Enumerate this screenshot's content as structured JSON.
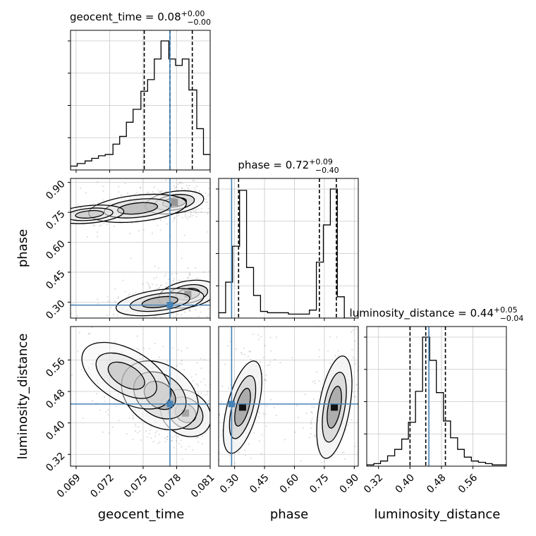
{
  "chart_data": {
    "type": "corner",
    "parameters": [
      "geocent_time",
      "phase",
      "luminosity_distance"
    ],
    "truths": {
      "geocent_time": 0.0774,
      "phase": 0.285,
      "luminosity_distance": 0.448
    },
    "titles": {
      "geocent_time": {
        "label": "geocent_time = 0.08",
        "plus": "+0.00",
        "minus": "−0.00"
      },
      "phase": {
        "label": "phase = 0.72",
        "plus": "+0.09",
        "minus": "−0.40"
      },
      "luminosity_distance": {
        "label": "luminosity_distance = 0.44",
        "plus": "+0.05",
        "minus": "−0.04"
      }
    },
    "ranges": {
      "geocent_time": [
        0.0685,
        0.081
      ],
      "phase": [
        0.22,
        0.92
      ],
      "luminosity_distance": [
        0.29,
        0.645
      ]
    },
    "ticks": {
      "geocent_time": [
        0.069,
        0.072,
        0.075,
        0.078,
        0.081
      ],
      "phase": [
        0.3,
        0.45,
        0.6,
        0.75,
        0.9
      ],
      "luminosity_distance": [
        0.32,
        0.4,
        0.48,
        0.56
      ]
    },
    "tick_labels": {
      "geocent_time": [
        "0.069",
        "0.072",
        "0.075",
        "0.078",
        "0.081"
      ],
      "phase": [
        "0.30",
        "0.45",
        "0.60",
        "0.75",
        "0.90"
      ],
      "luminosity_distance": [
        "0.32",
        "0.40",
        "0.48",
        "0.56"
      ]
    },
    "quantiles": {
      "geocent_time": [
        0.0751,
        0.0774,
        0.0794
      ],
      "phase": [
        0.32,
        0.725,
        0.81
      ],
      "luminosity_distance": [
        0.4,
        0.44,
        0.49
      ]
    },
    "histograms": {
      "geocent_time": {
        "edges": [
          0.0685,
          0.0691,
          0.0698,
          0.0704,
          0.071,
          0.0716,
          0.0723,
          0.0729,
          0.0735,
          0.0741,
          0.0748,
          0.0754,
          0.076,
          0.0766,
          0.0773,
          0.0779,
          0.0785,
          0.0791,
          0.0798,
          0.0804,
          0.081
        ],
        "counts": [
          3,
          5,
          7,
          9,
          11,
          12,
          20,
          26,
          37,
          47,
          61,
          70,
          86,
          100,
          86,
          81,
          86,
          62,
          32,
          12
        ]
      },
      "phase": {
        "edges": [
          0.22,
          0.255,
          0.29,
          0.325,
          0.36,
          0.395,
          0.43,
          0.465,
          0.5,
          0.535,
          0.57,
          0.605,
          0.64,
          0.675,
          0.71,
          0.745,
          0.78,
          0.815,
          0.85,
          0.885,
          0.92
        ],
        "counts": [
          4,
          27,
          54,
          96,
          38,
          17,
          5,
          4,
          4,
          4,
          3,
          3,
          3,
          6,
          42,
          70,
          97,
          16,
          0,
          0
        ]
      },
      "luminosity_distance": {
        "edges": [
          0.29,
          0.308,
          0.325,
          0.343,
          0.361,
          0.379,
          0.396,
          0.414,
          0.432,
          0.45,
          0.467,
          0.485,
          0.503,
          0.521,
          0.538,
          0.556,
          0.574,
          0.592,
          0.609,
          0.627,
          0.645
        ],
        "counts": [
          1,
          2,
          4,
          8,
          13,
          21,
          34,
          58,
          100,
          82,
          57,
          35,
          22,
          13,
          7,
          4,
          3,
          2,
          1,
          1
        ]
      }
    },
    "density_blobs": [
      {
        "pair": [
          "geocent_time",
          "phase"
        ],
        "x": 0.0778,
        "y": 0.8,
        "sx": 0.0012,
        "sy": 0.025,
        "angle": -8,
        "weight": 1.0
      },
      {
        "pair": [
          "geocent_time",
          "phase"
        ],
        "x": 0.0745,
        "y": 0.77,
        "sx": 0.002,
        "sy": 0.03,
        "angle": -6,
        "weight": 0.55
      },
      {
        "pair": [
          "geocent_time",
          "phase"
        ],
        "x": 0.0702,
        "y": 0.74,
        "sx": 0.0014,
        "sy": 0.02,
        "angle": -5,
        "weight": 0.25
      },
      {
        "pair": [
          "geocent_time",
          "phase"
        ],
        "x": 0.079,
        "y": 0.34,
        "sx": 0.0012,
        "sy": 0.03,
        "angle": -10,
        "weight": 0.9
      },
      {
        "pair": [
          "geocent_time",
          "phase"
        ],
        "x": 0.0765,
        "y": 0.3,
        "sx": 0.0018,
        "sy": 0.028,
        "angle": -8,
        "weight": 0.6
      },
      {
        "pair": [
          "geocent_time",
          "luminosity_distance"
        ],
        "x": 0.0788,
        "y": 0.425,
        "sx": 0.0011,
        "sy": 0.025,
        "angle": 35,
        "weight": 1.0
      },
      {
        "pair": [
          "geocent_time",
          "luminosity_distance"
        ],
        "x": 0.0765,
        "y": 0.47,
        "sx": 0.0017,
        "sy": 0.035,
        "angle": 35,
        "weight": 0.65
      },
      {
        "pair": [
          "geocent_time",
          "luminosity_distance"
        ],
        "x": 0.0735,
        "y": 0.52,
        "sx": 0.002,
        "sy": 0.03,
        "angle": 30,
        "weight": 0.3
      },
      {
        "pair": [
          "phase",
          "luminosity_distance"
        ],
        "x": 0.34,
        "y": 0.44,
        "sx": 0.035,
        "sy": 0.055,
        "angle": 15,
        "weight": 1.0
      },
      {
        "pair": [
          "phase",
          "luminosity_distance"
        ],
        "x": 0.8,
        "y": 0.44,
        "sx": 0.035,
        "sy": 0.06,
        "angle": 10,
        "weight": 0.95
      }
    ],
    "colors": {
      "truth": "#4682b4",
      "hist": "#000000",
      "grid": "#c8c8c8"
    }
  }
}
